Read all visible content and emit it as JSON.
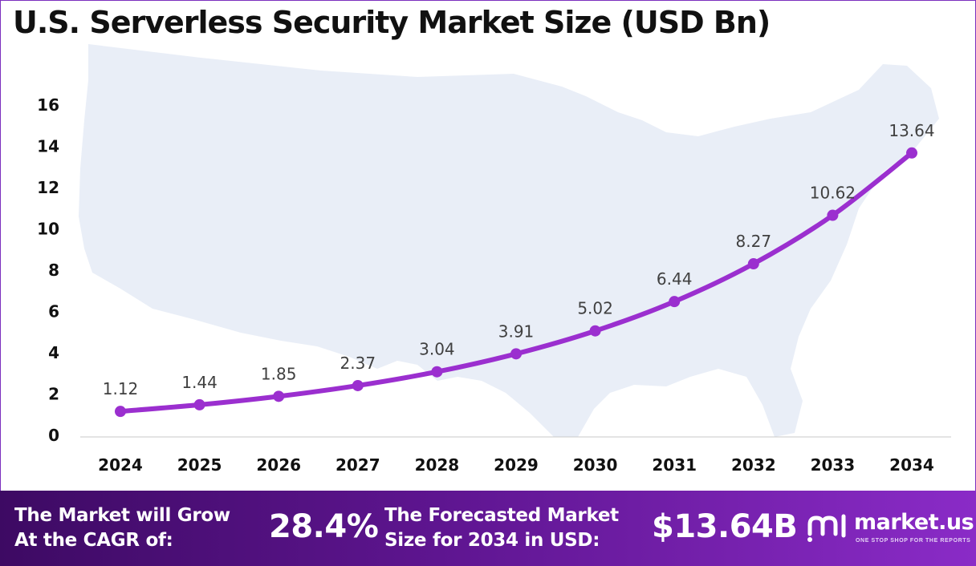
{
  "chart_data": {
    "type": "line",
    "title": "U.S. Serverless Security Market Size (USD Bn)",
    "categories": [
      "2024",
      "2025",
      "2026",
      "2027",
      "2028",
      "2029",
      "2030",
      "2031",
      "2032",
      "2033",
      "2034"
    ],
    "values": [
      1.12,
      1.44,
      1.85,
      2.37,
      3.04,
      3.91,
      5.02,
      6.44,
      8.27,
      10.62,
      13.64
    ],
    "value_labels": [
      "1.12",
      "1.44",
      "1.85",
      "2.37",
      "3.04",
      "3.91",
      "5.02",
      "6.44",
      "8.27",
      "10.62",
      "13.64"
    ],
    "y_ticks": [
      "0",
      "2",
      "4",
      "6",
      "8",
      "10",
      "12",
      "14",
      "16"
    ],
    "ylim": [
      0,
      16
    ],
    "grid": false,
    "legend": "none",
    "line_color": "#9b2fcf"
  },
  "footer": {
    "cagr_label_line1": "The Market will Grow",
    "cagr_label_line2": "At the CAGR of:",
    "cagr_value": "28.4%",
    "forecast_label_line1": "The Forecasted Market",
    "forecast_label_line2": "Size for 2034 in USD:",
    "forecast_value": "$13.64B",
    "brand_name": "market.us",
    "brand_tagline": "ONE STOP SHOP FOR THE REPORTS"
  },
  "colors": {
    "footer_start": "#3d0a63",
    "footer_end": "#8a2bc7",
    "map_fill": "#e9eef7"
  },
  "icons": {
    "background": "usa-map-silhouette",
    "brand": "market-us-logo-icon"
  }
}
